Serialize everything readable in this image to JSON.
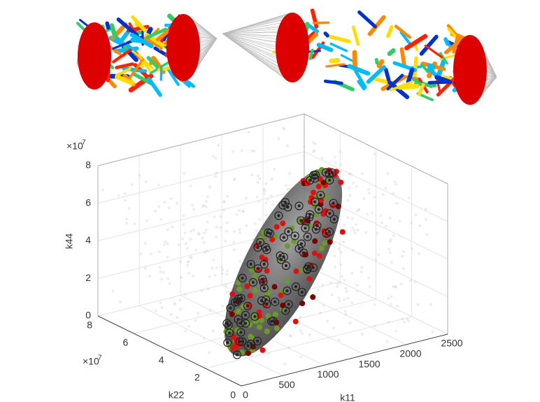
{
  "axes": {
    "k11": {
      "label": "k11",
      "ticks": [
        0,
        500,
        1000,
        1500,
        2000,
        2500
      ]
    },
    "k22": {
      "label": "k22",
      "ticks": [
        0,
        2,
        4,
        6,
        8
      ],
      "multiplier": "×10",
      "power": "7"
    },
    "k44": {
      "label": "k44",
      "ticks": [
        0,
        2,
        4,
        6,
        8
      ],
      "multiplier": "×10",
      "power": "7"
    }
  }
}
